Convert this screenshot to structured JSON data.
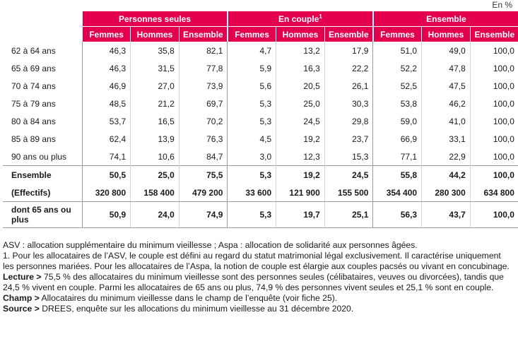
{
  "unit": "En %",
  "groups": [
    "Personnes seules",
    "En couple",
    "Ensemble"
  ],
  "group_sup": "1",
  "sub_headers": [
    "Femmes",
    "Hommes",
    "Ensemble"
  ],
  "rows": [
    {
      "label": "62 à 64 ans",
      "values": [
        "46,3",
        "35,8",
        "82,1",
        "4,7",
        "13,2",
        "17,9",
        "51,0",
        "49,0",
        "100,0"
      ]
    },
    {
      "label": "65 à 69 ans",
      "values": [
        "46,3",
        "31,5",
        "77,8",
        "5,9",
        "16,3",
        "22,2",
        "52,2",
        "47,8",
        "100,0"
      ]
    },
    {
      "label": "70 à 74 ans",
      "values": [
        "46,9",
        "27,0",
        "73,9",
        "5,6",
        "20,5",
        "26,1",
        "52,5",
        "47,5",
        "100,0"
      ]
    },
    {
      "label": "75 à 79 ans",
      "values": [
        "48,5",
        "21,2",
        "69,7",
        "5,3",
        "25,0",
        "30,3",
        "53,8",
        "46,2",
        "100,0"
      ]
    },
    {
      "label": "80 à 84 ans",
      "values": [
        "53,7",
        "16,5",
        "70,2",
        "5,3",
        "24,5",
        "29,8",
        "59,0",
        "41,0",
        "100,0"
      ]
    },
    {
      "label": "85 à 89 ans",
      "values": [
        "62,4",
        "13,9",
        "76,3",
        "4,5",
        "19,2",
        "23,7",
        "66,9",
        "33,1",
        "100,0"
      ]
    },
    {
      "label": "90 ans ou plus",
      "values": [
        "74,1",
        "10,6",
        "84,7",
        "3,0",
        "12,3",
        "15,3",
        "77,1",
        "22,9",
        "100,0"
      ]
    },
    {
      "label": "Ensemble",
      "values": [
        "50,5",
        "25,0",
        "75,5",
        "5,3",
        "19,2",
        "24,5",
        "55,8",
        "44,2",
        "100,0"
      ]
    },
    {
      "label": "(Effectifs)",
      "values": [
        "320 800",
        "158 400",
        "479 200",
        "33 600",
        "121 900",
        "155 500",
        "354 400",
        "280 300",
        "634 800"
      ]
    },
    {
      "label": "dont 65 ans ou plus",
      "values": [
        "50,9",
        "24,0",
        "74,9",
        "5,3",
        "19,7",
        "25,1",
        "56,3",
        "43,7",
        "100,0"
      ]
    }
  ],
  "notes": {
    "asv": "ASV : allocation supplémentaire du minimum vieillesse ; Aspa : allocation de solidarité aux personnes âgées.",
    "note1": "1. Pour les allocataires de l’ASV, le couple est défini au regard du statut matrimonial légal exclusivement. Il caractérise uniquement les personnes mariées. Pour les allocataires de l’Aspa, la notion de couple est élargie aux couples pacsés ou vivant en concubinage.",
    "lecture_label": "Lecture >",
    "lecture": " 75,5 % des allocataires du minimum vieillesse sont des personnes seules (célibataires, veuves ou divorcées), tandis que 24,5 % vivent en couple. Parmi les allocataires de 65 ans ou plus, 74,9 % des personnes vivent seules et 25,1 % sont en couple.",
    "champ_label": "Champ >",
    "champ": " Allocataires du minimum vieillesse dans le champ de l’enquête (voir fiche 25).",
    "source_label": "Source >",
    "source": " DREES, enquête sur les allocations du minimum vieillesse au 31 décembre 2020."
  }
}
